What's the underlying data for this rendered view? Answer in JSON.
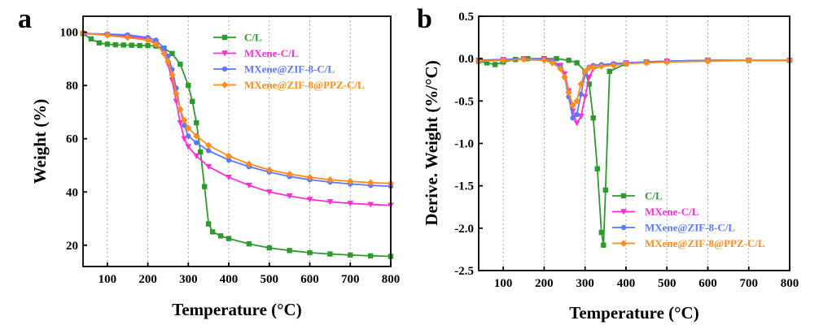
{
  "chart_data": [
    {
      "type": "line",
      "panel_label": "a",
      "xlabel": "Temperature (°C)",
      "ylabel": "Weight (%)",
      "xlim": [
        40,
        800
      ],
      "ylim": [
        12,
        106
      ],
      "xticks": [
        100,
        200,
        300,
        400,
        500,
        600,
        700,
        800
      ],
      "yticks": [
        20,
        40,
        60,
        80,
        100
      ],
      "grid": "vertical-dotted",
      "legend_position": "top-right",
      "series": [
        {
          "name": "C/L",
          "color": "#2e9a2e",
          "marker": "square",
          "x": [
            40,
            60,
            80,
            100,
            120,
            140,
            160,
            180,
            200,
            220,
            240,
            260,
            280,
            300,
            310,
            320,
            330,
            340,
            350,
            360,
            380,
            400,
            450,
            500,
            550,
            600,
            650,
            700,
            750,
            800
          ],
          "y": [
            99.5,
            97.5,
            96,
            95.5,
            95.3,
            95.2,
            95.1,
            95,
            95,
            94.8,
            94,
            92,
            88,
            80,
            74,
            66,
            55,
            42,
            28,
            25,
            23.5,
            22.5,
            20.5,
            19,
            18,
            17.2,
            16.7,
            16.3,
            16,
            15.8
          ]
        },
        {
          "name": "MXene-C/L",
          "color": "#ff2ed8",
          "marker": "triangle-down",
          "x": [
            40,
            100,
            150,
            200,
            220,
            240,
            250,
            260,
            270,
            280,
            290,
            300,
            320,
            350,
            400,
            450,
            500,
            550,
            600,
            650,
            700,
            750,
            800
          ],
          "y": [
            99.5,
            99,
            98.5,
            97.5,
            96,
            92,
            88,
            82,
            74,
            66,
            60,
            57,
            53.5,
            49.5,
            45.5,
            42.5,
            40,
            38.5,
            37.2,
            36.3,
            35.7,
            35.3,
            35
          ]
        },
        {
          "name": "MXene@ZIF-8-C/L",
          "color": "#5a78ff",
          "marker": "circle",
          "x": [
            40,
            100,
            150,
            200,
            220,
            240,
            250,
            260,
            270,
            280,
            290,
            300,
            320,
            350,
            400,
            450,
            500,
            550,
            600,
            650,
            700,
            750,
            800
          ],
          "y": [
            99.6,
            99.3,
            99,
            98,
            97,
            94,
            91,
            86,
            79,
            71,
            65,
            61,
            58.5,
            55.5,
            52,
            49.5,
            47.5,
            45.8,
            44.6,
            43.7,
            43,
            42.5,
            42.1
          ]
        },
        {
          "name": "MXene@ZIF-8@PPZ-C/L",
          "color": "#ff8c1a",
          "marker": "diamond",
          "x": [
            40,
            100,
            150,
            200,
            220,
            240,
            250,
            260,
            270,
            280,
            290,
            300,
            320,
            350,
            400,
            450,
            500,
            550,
            600,
            650,
            700,
            750,
            800
          ],
          "y": [
            99.8,
            98.8,
            98,
            97,
            95.5,
            92,
            89,
            84,
            77,
            71,
            67,
            64,
            61,
            57.5,
            53.5,
            50.5,
            48.3,
            46.7,
            45.5,
            44.6,
            44,
            43.5,
            43.2
          ]
        }
      ]
    },
    {
      "type": "line",
      "panel_label": "b",
      "xlabel": "Temperature (°C)",
      "ylabel": "Derive. Weight (%/°C)",
      "xlim": [
        40,
        800
      ],
      "ylim": [
        -2.5,
        0.5
      ],
      "xticks": [
        100,
        200,
        300,
        400,
        500,
        600,
        700,
        800
      ],
      "yticks": [
        0.5,
        0.0,
        -0.5,
        -1.0,
        -1.5,
        -2.0,
        -2.5
      ],
      "ytick_labels": [
        "0.5",
        "0.0",
        "-0.5",
        "-1.0",
        "-1.5",
        "-2.0",
        "-2.5"
      ],
      "grid": "vertical-dotted",
      "legend_position": "bottom-right",
      "series": [
        {
          "name": "C/L",
          "color": "#2e9a2e",
          "marker": "square",
          "x": [
            40,
            60,
            80,
            100,
            130,
            160,
            200,
            230,
            260,
            280,
            300,
            310,
            320,
            330,
            340,
            345,
            350,
            360,
            400,
            450,
            500,
            600,
            700,
            800
          ],
          "y": [
            -0.03,
            -0.05,
            -0.07,
            -0.04,
            -0.01,
            0.0,
            0.0,
            0.0,
            -0.02,
            -0.05,
            -0.15,
            -0.3,
            -0.7,
            -1.3,
            -2.05,
            -2.2,
            -1.55,
            -0.15,
            -0.06,
            -0.04,
            -0.03,
            -0.02,
            -0.02,
            -0.02
          ]
        },
        {
          "name": "MXene-C/L",
          "color": "#ff2ed8",
          "marker": "triangle-down",
          "x": [
            40,
            100,
            150,
            200,
            220,
            240,
            250,
            260,
            270,
            280,
            290,
            300,
            310,
            320,
            340,
            370,
            400,
            450,
            500,
            600,
            700,
            800
          ],
          "y": [
            -0.02,
            -0.01,
            0.0,
            -0.01,
            -0.03,
            -0.08,
            -0.18,
            -0.38,
            -0.62,
            -0.76,
            -0.68,
            -0.45,
            -0.22,
            -0.12,
            -0.09,
            -0.07,
            -0.05,
            -0.04,
            -0.03,
            -0.02,
            -0.02,
            -0.02
          ]
        },
        {
          "name": "MXene@ZIF-8-C/L",
          "color": "#5a78ff",
          "marker": "circle",
          "x": [
            40,
            100,
            150,
            200,
            220,
            240,
            250,
            260,
            270,
            280,
            290,
            300,
            310,
            320,
            340,
            370,
            400,
            450,
            500,
            600,
            700,
            800
          ],
          "y": [
            -0.02,
            -0.01,
            0.0,
            -0.01,
            -0.03,
            -0.1,
            -0.22,
            -0.45,
            -0.7,
            -0.66,
            -0.42,
            -0.18,
            -0.1,
            -0.08,
            -0.07,
            -0.06,
            -0.05,
            -0.04,
            -0.03,
            -0.02,
            -0.02,
            -0.02
          ]
        },
        {
          "name": "MXene@ZIF-8@PPZ-C/L",
          "color": "#ff8c1a",
          "marker": "diamond",
          "x": [
            40,
            100,
            150,
            200,
            220,
            240,
            250,
            260,
            270,
            280,
            290,
            300,
            310,
            320,
            340,
            370,
            400,
            450,
            500,
            600,
            700,
            800
          ],
          "y": [
            -0.03,
            -0.02,
            -0.01,
            -0.02,
            -0.05,
            -0.12,
            -0.22,
            -0.4,
            -0.55,
            -0.5,
            -0.3,
            -0.15,
            -0.11,
            -0.1,
            -0.09,
            -0.08,
            -0.06,
            -0.05,
            -0.04,
            -0.03,
            -0.02,
            -0.02
          ]
        }
      ]
    }
  ]
}
